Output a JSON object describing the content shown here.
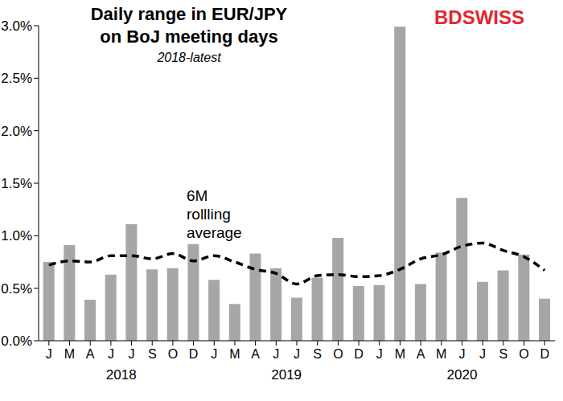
{
  "chart_data": {
    "type": "bar",
    "title": [
      "Daily range in EUR/JPY",
      "on BoJ meeting days"
    ],
    "subtitle": "2018-latest",
    "logo": "BDSWISS",
    "categories": [
      "J",
      "M",
      "A",
      "J",
      "J",
      "S",
      "O",
      "D",
      "J",
      "M",
      "A",
      "J",
      "J",
      "S",
      "O",
      "D",
      "J",
      "M",
      "A",
      "M",
      "J",
      "J",
      "S",
      "O",
      "D"
    ],
    "year_groups": [
      {
        "label": "2018",
        "first": 0,
        "last": 7
      },
      {
        "label": "2019",
        "first": 8,
        "last": 15
      },
      {
        "label": "2020",
        "first": 16,
        "last": 24
      }
    ],
    "series": [
      {
        "type": "bar",
        "color": "#a6a6a6",
        "values": [
          0.75,
          0.91,
          0.39,
          0.63,
          1.11,
          0.68,
          0.69,
          0.92,
          0.58,
          0.35,
          0.83,
          0.69,
          0.41,
          0.6,
          0.98,
          0.52,
          0.53,
          2.99,
          0.54,
          0.84,
          1.36,
          0.56,
          0.67,
          0.82,
          0.4
        ]
      },
      {
        "type": "line",
        "name": "6M rollling average",
        "color": "#000000",
        "line_style": "dashed",
        "values": [
          0.72,
          0.76,
          0.75,
          0.81,
          0.81,
          0.78,
          0.83,
          0.76,
          0.81,
          0.75,
          0.68,
          0.64,
          0.54,
          0.62,
          0.63,
          0.61,
          0.62,
          0.68,
          0.78,
          0.82,
          0.9,
          0.93,
          0.86,
          0.8,
          0.67
        ]
      }
    ],
    "ylim": [
      0,
      3
    ],
    "yticks": [
      {
        "value": 0,
        "label": "0.0%"
      },
      {
        "value": 0.5,
        "label": "0.5%"
      },
      {
        "value": 1,
        "label": "1.0%"
      },
      {
        "value": 1.5,
        "label": "1.5%"
      },
      {
        "value": 2,
        "label": "2.0%"
      },
      {
        "value": 2.5,
        "label": "2.5%"
      },
      {
        "value": 3,
        "label": "3.0%"
      }
    ],
    "grid": false
  }
}
